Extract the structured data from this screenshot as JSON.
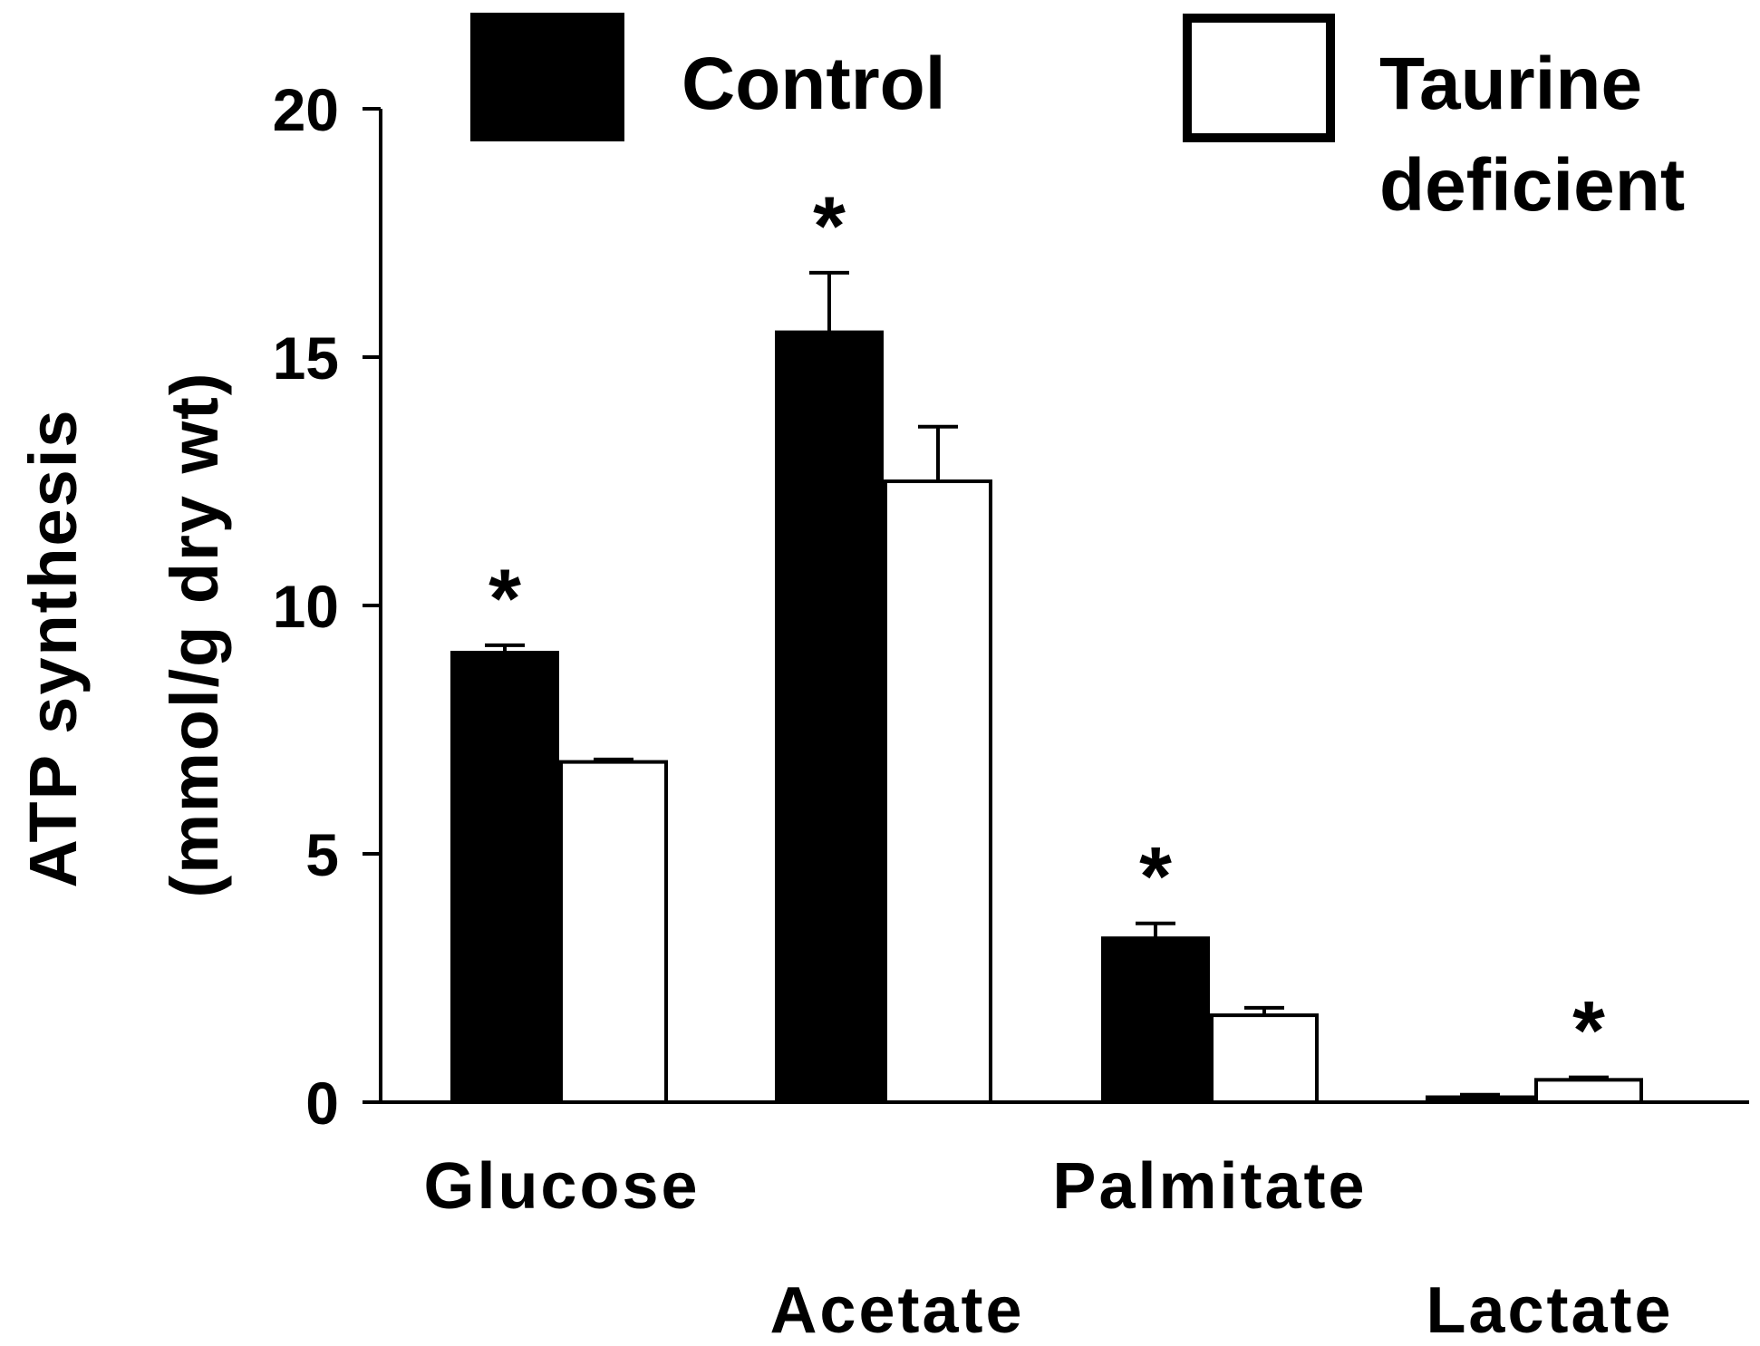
{
  "chart_data": {
    "type": "bar",
    "title": "",
    "xlabel": "",
    "ylabel": "ATP synthesis",
    "ylabel_units": "(mmol/g dry wt)",
    "ylim": [
      0,
      20
    ],
    "yticks": [
      0,
      5,
      10,
      15,
      20
    ],
    "grid": false,
    "legend_position": "top",
    "categories": [
      "Glucose",
      "Acetate",
      "Palmitate",
      "Lactate"
    ],
    "series": [
      {
        "name": "Control",
        "color": "#000000",
        "fill": "solid",
        "values": [
          9.05,
          15.5,
          3.3,
          0.1
        ],
        "errors": [
          0.15,
          1.2,
          0.3,
          0.05
        ]
      },
      {
        "name": "Taurine deficient",
        "legend_lines": [
          "Taurine",
          "deficient"
        ],
        "color": "#ffffff",
        "fill": "hollow",
        "values": [
          6.85,
          12.5,
          1.75,
          0.45
        ],
        "errors": [
          0.05,
          1.1,
          0.15,
          0.05
        ]
      }
    ],
    "significance_marker": "*",
    "significance": [
      {
        "category": "Glucose",
        "series": "Control"
      },
      {
        "category": "Acetate",
        "series": "Control"
      },
      {
        "category": "Palmitate",
        "series": "Control"
      },
      {
        "category": "Lactate",
        "series": "Taurine deficient"
      }
    ]
  }
}
